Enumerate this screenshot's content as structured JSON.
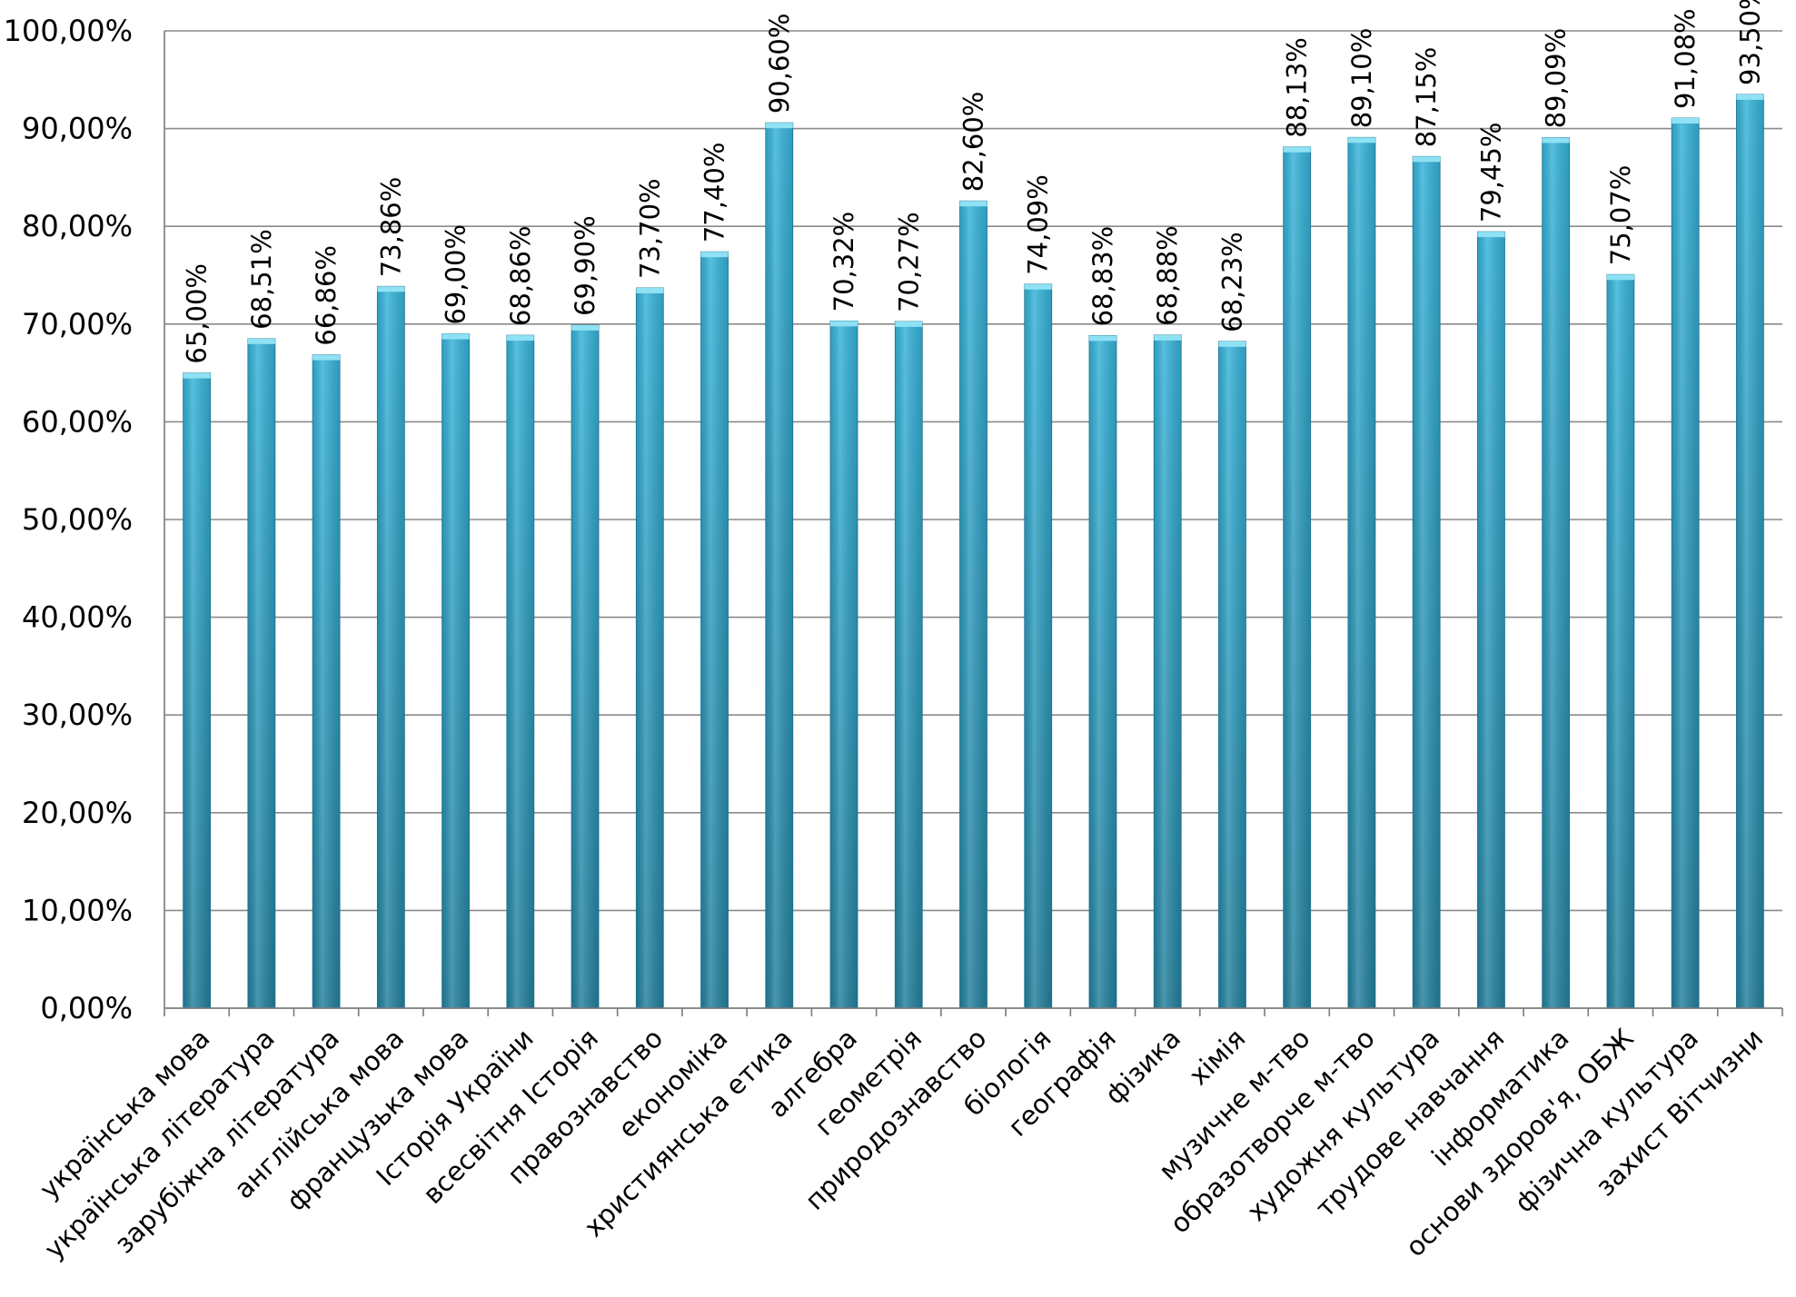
{
  "chart_data": {
    "type": "bar",
    "title": "",
    "xlabel": "",
    "ylabel": "",
    "ylim": [
      0,
      100
    ],
    "y_tick_step": 10,
    "grid": true,
    "legend": "none",
    "bar_color": "#35b2d9",
    "bar_color_dark": "#237f9c",
    "y_ticks": [
      "0,00%",
      "10,00%",
      "20,00%",
      "30,00%",
      "40,00%",
      "50,00%",
      "60,00%",
      "70,00%",
      "80,00%",
      "90,00%",
      "100,00%"
    ],
    "categories": [
      "українська мова",
      "українська література",
      "зарубіжна література",
      "англійська мова",
      "французька мова",
      "Історія України",
      "всесвітня Історія",
      "правознавство",
      "економіка",
      "християнська етика",
      "алгебра",
      "геометрія",
      "природознавство",
      "біологія",
      "географія",
      "фізика",
      "хімія",
      "музичне м-тво",
      "образотворче м-тво",
      "художня культура",
      "трудове навчання",
      "інформатика",
      "основи здоров'я, ОБЖ",
      "фізична культура",
      "захист Вітчизни"
    ],
    "values": [
      65.0,
      68.51,
      66.86,
      73.86,
      69.0,
      68.86,
      69.9,
      73.7,
      77.4,
      90.6,
      70.32,
      70.27,
      82.6,
      74.09,
      68.83,
      68.88,
      68.23,
      88.13,
      89.1,
      87.15,
      79.45,
      89.09,
      75.07,
      91.08,
      93.5
    ],
    "data_labels": [
      "65,00%",
      "68,51%",
      "66,86%",
      "73,86%",
      "69,00%",
      "68,86%",
      "69,90%",
      "73,70%",
      "77,40%",
      "90,60%",
      "70,32%",
      "70,27%",
      "82,60%",
      "74,09%",
      "68,83%",
      "68,88%",
      "68,23%",
      "88,13%",
      "89,10%",
      "87,15%",
      "79,45%",
      "89,09%",
      "75,07%",
      "91,08%",
      "93,50%"
    ]
  }
}
